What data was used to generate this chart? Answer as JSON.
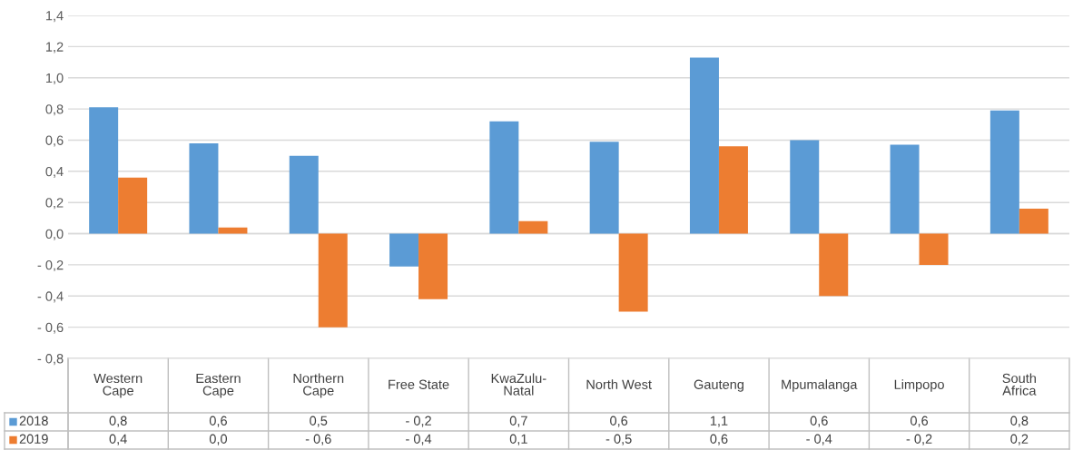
{
  "chart_data": {
    "type": "bar",
    "categories": [
      "Western Cape",
      "Eastern Cape",
      "Northern Cape",
      "Free State",
      "KwaZulu-Natal",
      "North West",
      "Gauteng",
      "Mpumalanga",
      "Limpopo",
      "South Africa"
    ],
    "series": [
      {
        "name": "2018",
        "color": "#5b9bd5",
        "values": [
          0.81,
          0.58,
          0.5,
          -0.21,
          0.72,
          0.59,
          1.13,
          0.6,
          0.57,
          0.79
        ],
        "value_labels": [
          "0,8",
          "0,6",
          "0,5",
          "- 0,2",
          "0,7",
          "0,6",
          "1,1",
          "0,6",
          "0,6",
          "0,8"
        ]
      },
      {
        "name": "2019",
        "color": "#ed7d31",
        "values": [
          0.36,
          0.04,
          -0.6,
          -0.42,
          0.08,
          -0.5,
          0.56,
          -0.4,
          -0.2,
          0.16
        ],
        "value_labels": [
          "0,4",
          "0,0",
          "- 0,6",
          "- 0,4",
          "0,1",
          "- 0,5",
          "0,6",
          "- 0,4",
          "- 0,2",
          "0,2"
        ]
      }
    ],
    "ylim": [
      -0.8,
      1.4
    ],
    "yticks": [
      {
        "value": -0.8,
        "label": "- 0,8"
      },
      {
        "value": -0.6,
        "label": "- 0,6"
      },
      {
        "value": -0.4,
        "label": "- 0,4"
      },
      {
        "value": -0.2,
        "label": "- 0,2"
      },
      {
        "value": 0,
        "label": "0,0"
      },
      {
        "value": 0.2,
        "label": "0,2"
      },
      {
        "value": 0.4,
        "label": "0,4"
      },
      {
        "value": 0.6,
        "label": "0,6"
      },
      {
        "value": 0.8,
        "label": "0,8"
      },
      {
        "value": 1.0,
        "label": "1,0"
      },
      {
        "value": 1.2,
        "label": "1,2"
      },
      {
        "value": 1.4,
        "label": "1,4"
      }
    ],
    "grid": "y",
    "legend": "bottom"
  }
}
